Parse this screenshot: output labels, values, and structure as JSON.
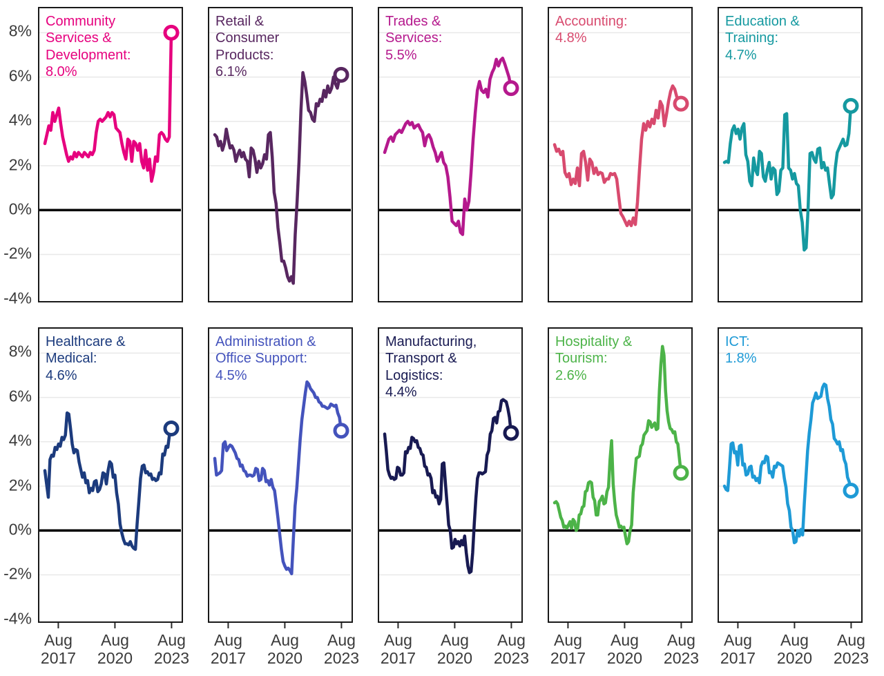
{
  "page": {
    "background": "#ffffff"
  },
  "axes": {
    "y_ticks": [
      "8%",
      "6%",
      "4%",
      "2%",
      "0%",
      "-2%",
      "-4%"
    ],
    "x_ticks": [
      [
        "Aug",
        "2017"
      ],
      [
        "Aug",
        "2020"
      ],
      [
        "Aug",
        "2023"
      ]
    ],
    "ylim": [
      -4.07,
      9.1
    ],
    "grid_values": [
      8,
      6,
      4,
      2,
      -2
    ],
    "zero_line_value": 0,
    "grid_color": "#e8e8e8",
    "zero_line_color": "#000000",
    "border_color": "#191919",
    "label_color": "#3a3a3a"
  },
  "chart_data": [
    {
      "type": "line",
      "title": "Community Services & Development:",
      "value": "8.0%",
      "color": "#e6007e",
      "unit": "%",
      "x_range": [
        "Aug 2017",
        "Aug 2023"
      ],
      "values": [
        3.0,
        3.4,
        3.8,
        3.6,
        4.4,
        4.0,
        4.3,
        4.6,
        3.9,
        3.3,
        2.9,
        2.5,
        2.2,
        2.4,
        2.3,
        2.6,
        2.4,
        2.6,
        2.5,
        2.4,
        2.6,
        2.5,
        2.4,
        2.6,
        2.5,
        2.7,
        3.5,
        4.0,
        4.1,
        4.0,
        4.1,
        4.2,
        4.4,
        4.2,
        4.4,
        4.3,
        3.7,
        3.6,
        3.5,
        3.0,
        2.6,
        2.3,
        3.2,
        3.1,
        2.2,
        3.1,
        3.0,
        2.7,
        3.0,
        2.2,
        1.9,
        2.7,
        1.8,
        2.3,
        1.3,
        1.7,
        2.4,
        2.2,
        3.4,
        3.5,
        3.4,
        3.2,
        3.1,
        3.3,
        8.0
      ]
    },
    {
      "type": "line",
      "title": "Retail & Consumer Products:",
      "value": "6.1%",
      "color": "#582760",
      "unit": "%",
      "x_range": [
        "Aug 2017",
        "Aug 2023"
      ],
      "values": [
        3.4,
        3.3,
        2.9,
        3.1,
        2.7,
        3.0,
        3.65,
        3.2,
        2.8,
        2.9,
        2.7,
        2.2,
        2.5,
        2.7,
        2.4,
        2.6,
        2.3,
        2.2,
        1.5,
        2.8,
        2.7,
        2.3,
        1.7,
        2.2,
        1.9,
        2.1,
        2.5,
        2.3,
        3.4,
        3.5,
        2.4,
        0.8,
        0.3,
        -0.8,
        -1.5,
        -2.3,
        -2.3,
        -2.6,
        -3.0,
        -3.2,
        -3.0,
        -3.3,
        -1.1,
        0.4,
        2.2,
        4.5,
        6.2,
        5.8,
        5.2,
        4.5,
        4.4,
        4.1,
        4.0,
        4.8,
        4.7,
        5.0,
        4.9,
        5.4,
        5.1,
        5.6,
        5.3,
        5.5,
        6.0,
        5.7,
        5.5,
        5.9,
        6.1
      ]
    },
    {
      "type": "line",
      "title": "Trades & Services:",
      "value": "5.5%",
      "color": "#b5198d",
      "unit": "%",
      "x_range": [
        "Aug 2017",
        "Aug 2023"
      ],
      "values": [
        2.6,
        2.9,
        3.2,
        3.3,
        3.1,
        3.4,
        3.5,
        3.6,
        3.5,
        3.7,
        3.9,
        4.0,
        3.85,
        3.95,
        3.7,
        3.8,
        3.85,
        3.65,
        3.5,
        2.9,
        3.3,
        3.4,
        3.2,
        2.85,
        2.6,
        2.2,
        2.4,
        2.6,
        2.15,
        2.0,
        1.5,
        0.6,
        -0.5,
        -0.6,
        -0.7,
        -0.5,
        -1.0,
        -1.1,
        0.5,
        0.0,
        0.4,
        1.7,
        3.2,
        4.4,
        5.4,
        5.8,
        5.4,
        5.3,
        5.45,
        5.1,
        5.9,
        6.2,
        6.4,
        6.8,
        6.5,
        6.75,
        6.85,
        6.6,
        6.3,
        6.0,
        5.5
      ]
    },
    {
      "type": "line",
      "title": "Accounting:",
      "value": "4.8%",
      "color": "#d84a6e",
      "unit": "%",
      "x_range": [
        "Aug 2017",
        "Aug 2023"
      ],
      "values": [
        2.95,
        2.65,
        2.75,
        2.5,
        2.65,
        1.7,
        1.5,
        1.65,
        1.15,
        1.4,
        1.2,
        1.9,
        1.1,
        2.55,
        2.65,
        2.15,
        1.35,
        2.3,
        2.15,
        1.65,
        1.9,
        1.6,
        1.7,
        1.65,
        1.25,
        1.4,
        1.4,
        1.65,
        1.6,
        1.65,
        1.4,
        0.6,
        -0.15,
        -0.3,
        -0.5,
        -0.7,
        -0.5,
        -0.7,
        -0.35,
        -0.65,
        0.35,
        1.85,
        3.2,
        3.9,
        3.6,
        4.0,
        3.75,
        4.1,
        3.9,
        4.5,
        4.15,
        4.9,
        4.7,
        3.8,
        4.3,
        4.9,
        5.35,
        5.6,
        5.45,
        5.1,
        5.0,
        4.8
      ]
    },
    {
      "type": "line",
      "title": "Education & Training:",
      "value": "4.7%",
      "color": "#1599a0",
      "unit": "%",
      "x_range": [
        "Aug 2017",
        "Aug 2023"
      ],
      "values": [
        2.15,
        2.2,
        2.15,
        3.0,
        3.6,
        3.8,
        3.45,
        3.65,
        3.2,
        3.7,
        3.9,
        2.5,
        2.2,
        1.3,
        1.1,
        2.35,
        1.8,
        1.6,
        2.65,
        2.55,
        1.5,
        1.3,
        1.8,
        2.15,
        1.4,
        1.9,
        1.8,
        0.7,
        0.85,
        1.8,
        1.9,
        4.3,
        4.35,
        1.9,
        1.8,
        1.4,
        1.65,
        1.2,
        1.1,
        0.0,
        -0.55,
        -1.8,
        -1.7,
        0.05,
        2.55,
        2.6,
        2.3,
        2.15,
        2.75,
        2.8,
        1.9,
        2.15,
        1.8,
        1.9,
        1.2,
        0.55,
        0.7,
        1.9,
        2.6,
        2.8,
        3.0,
        3.2,
        2.9,
        2.95,
        3.45,
        4.7
      ]
    },
    {
      "type": "line",
      "title": "Healthcare & Medical:",
      "value": "4.6%",
      "color": "#1c3b7d",
      "unit": "%",
      "x_range": [
        "Aug 2017",
        "Aug 2023"
      ],
      "values": [
        2.7,
        2.1,
        1.5,
        3.2,
        3.4,
        3.35,
        3.75,
        3.65,
        3.9,
        3.8,
        4.2,
        4.1,
        4.3,
        5.3,
        5.25,
        4.6,
        3.9,
        3.5,
        3.65,
        3.6,
        3.1,
        2.75,
        2.4,
        2.6,
        2.15,
        2.25,
        1.7,
        1.9,
        1.8,
        2.2,
        2.25,
        1.75,
        1.85,
        2.1,
        2.6,
        2.55,
        2.1,
        2.7,
        3.1,
        3.0,
        2.4,
        2.5,
        1.7,
        1.2,
        0.3,
        -0.1,
        -0.4,
        -0.6,
        -0.6,
        -0.65,
        -0.5,
        -0.7,
        -0.8,
        -0.85,
        0.3,
        1.3,
        2.35,
        2.9,
        2.95,
        2.6,
        2.65,
        2.5,
        2.55,
        2.3,
        2.35,
        2.25,
        2.3,
        2.6,
        2.55,
        3.45,
        3.4,
        3.8,
        3.75,
        4.35,
        4.6
      ]
    },
    {
      "type": "line",
      "title": "Administration & Office Support:",
      "value": "4.5%",
      "color": "#4453bc",
      "unit": "%",
      "x_range": [
        "Aug 2017",
        "Aug 2023"
      ],
      "values": [
        3.25,
        2.5,
        2.55,
        2.6,
        2.7,
        3.9,
        4.0,
        3.6,
        3.75,
        3.85,
        3.8,
        3.65,
        3.5,
        3.25,
        3.2,
        2.9,
        2.95,
        2.7,
        2.65,
        2.45,
        2.5,
        2.5,
        2.45,
        2.5,
        2.8,
        2.75,
        2.25,
        2.3,
        2.8,
        2.7,
        2.2,
        2.25,
        2.05,
        2.3,
        1.95,
        1.8,
        1.2,
        0.55,
        -0.15,
        -0.85,
        -1.4,
        -1.6,
        -1.75,
        -1.7,
        -1.8,
        -1.95,
        -0.4,
        1.1,
        1.9,
        3.0,
        4.1,
        5.0,
        5.6,
        6.2,
        6.7,
        6.6,
        6.4,
        6.3,
        6.2,
        6.0,
        6.0,
        5.8,
        5.75,
        5.6,
        5.6,
        5.55,
        5.5,
        5.55,
        5.7,
        5.65,
        5.6,
        5.65,
        5.3,
        5.1,
        4.5
      ]
    },
    {
      "type": "line",
      "title": "Manufacturing, Transport & Logistics:",
      "value": "4.4%",
      "color": "#181a52",
      "unit": "%",
      "x_range": [
        "Aug 2017",
        "Aug 2023"
      ],
      "values": [
        4.35,
        3.6,
        2.75,
        2.5,
        2.35,
        2.4,
        2.3,
        2.35,
        2.85,
        2.8,
        2.5,
        2.5,
        2.6,
        3.55,
        3.5,
        3.75,
        3.7,
        4.2,
        4.15,
        4.0,
        4.05,
        3.75,
        3.7,
        3.45,
        3.4,
        2.9,
        2.85,
        2.5,
        2.55,
        2.35,
        1.7,
        1.8,
        1.5,
        1.55,
        1.2,
        1.4,
        3.0,
        3.05,
        2.1,
        1.2,
        0.25,
        0.0,
        -0.8,
        -0.75,
        -0.4,
        -0.6,
        -0.5,
        -0.7,
        -0.45,
        -0.65,
        -0.25,
        -1.0,
        -1.6,
        -1.9,
        -1.85,
        -1.0,
        0.3,
        1.45,
        2.35,
        2.6,
        2.6,
        2.55,
        2.6,
        2.65,
        3.4,
        3.6,
        4.35,
        4.5,
        5.05,
        5.1,
        4.85,
        5.35,
        5.4,
        5.85,
        5.9,
        5.85,
        5.8,
        5.5,
        5.1,
        4.4
      ]
    },
    {
      "type": "line",
      "title": "Hospitality & Tourism:",
      "value": "2.6%",
      "color": "#4cb348",
      "unit": "%",
      "x_range": [
        "Aug 2017",
        "Aug 2023"
      ],
      "values": [
        1.25,
        1.3,
        1.2,
        0.9,
        0.6,
        0.45,
        0.15,
        0.2,
        0.1,
        0.25,
        0.4,
        0.1,
        0.5,
        0.4,
        0.0,
        0.1,
        0.7,
        0.75,
        1.05,
        1.1,
        1.75,
        1.8,
        2.15,
        2.2,
        2.15,
        1.5,
        1.35,
        0.7,
        0.7,
        1.3,
        1.4,
        1.55,
        1.2,
        1.25,
        1.75,
        1.95,
        3.2,
        4.05,
        2.1,
        1.3,
        0.7,
        0.45,
        0.15,
        0.2,
        0.1,
        0.15,
        -0.25,
        -0.6,
        -0.5,
        0.0,
        0.25,
        1.7,
        2.5,
        3.25,
        3.3,
        3.35,
        3.8,
        3.9,
        4.3,
        4.4,
        4.5,
        4.95,
        4.9,
        4.65,
        4.75,
        4.85,
        4.55,
        4.6,
        6.3,
        7.5,
        8.3,
        7.9,
        6.3,
        5.4,
        4.9,
        4.6,
        4.55,
        4.4,
        4.45,
        4.0,
        3.9,
        3.25,
        2.6
      ]
    },
    {
      "type": "line",
      "title": "ICT:",
      "value": "1.8%",
      "color": "#1e9ad6",
      "unit": "%",
      "x_range": [
        "Aug 2017",
        "Aug 2023"
      ],
      "values": [
        2.0,
        1.85,
        1.8,
        2.8,
        3.9,
        3.95,
        3.5,
        3.55,
        2.95,
        3.8,
        3.85,
        2.95,
        3.0,
        2.5,
        2.55,
        2.85,
        2.9,
        2.4,
        2.45,
        2.25,
        2.35,
        2.15,
        2.9,
        3.1,
        3.05,
        3.35,
        3.3,
        2.6,
        2.65,
        2.4,
        2.9,
        2.85,
        3.05,
        3.0,
        2.95,
        2.9,
        2.35,
        1.95,
        1.2,
        0.9,
        0.15,
        0.0,
        -0.55,
        -0.5,
        0.0,
        -0.25,
        0.05,
        -0.2,
        1.2,
        2.4,
        3.6,
        4.4,
        5.0,
        5.75,
        5.95,
        6.2,
        5.95,
        6.0,
        6.05,
        6.45,
        6.6,
        6.55,
        5.95,
        5.6,
        5.0,
        4.8,
        4.15,
        4.05,
        3.9,
        4.0,
        3.6,
        3.65,
        3.2,
        3.0,
        2.4,
        2.2,
        1.8
      ]
    }
  ]
}
